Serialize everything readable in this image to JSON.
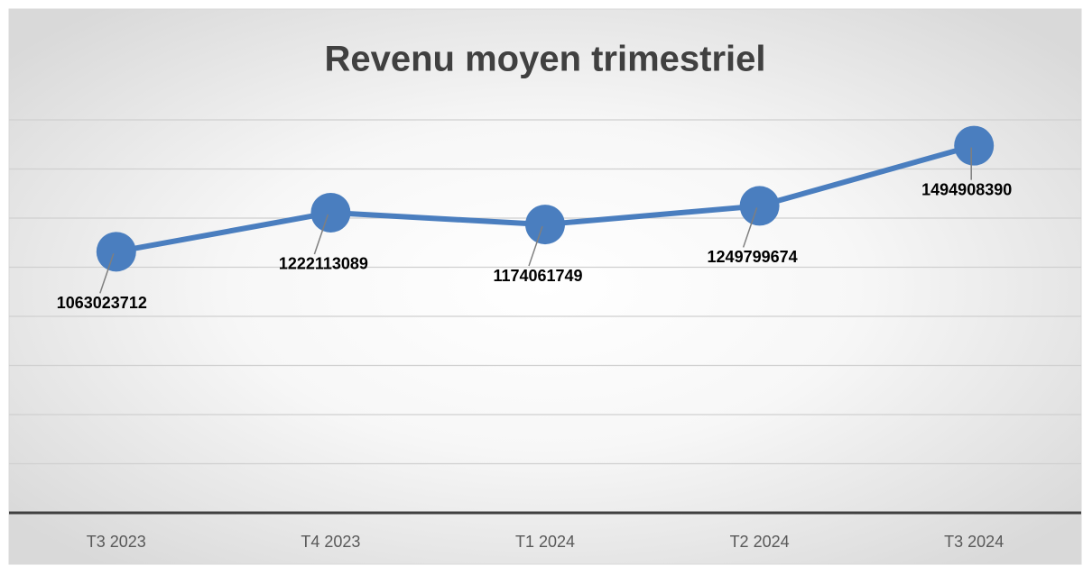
{
  "chart_data": {
    "type": "line",
    "title": "Revenu moyen trimestriel",
    "categories": [
      "T3 2023",
      "T4 2023",
      "T1 2024",
      "T2 2024",
      "T3 2024"
    ],
    "series": [
      {
        "name": "Revenu moyen",
        "color": "#4a7ebf",
        "values": [
          1063023712,
          1222113089,
          1174061749,
          1249799674,
          1494908390
        ]
      }
    ],
    "ylim": [
      0,
      1600000000
    ],
    "yticks": [
      0,
      200000000,
      400000000,
      600000000,
      800000000,
      1000000000,
      1200000000,
      1400000000,
      1600000000
    ],
    "grid": true
  }
}
